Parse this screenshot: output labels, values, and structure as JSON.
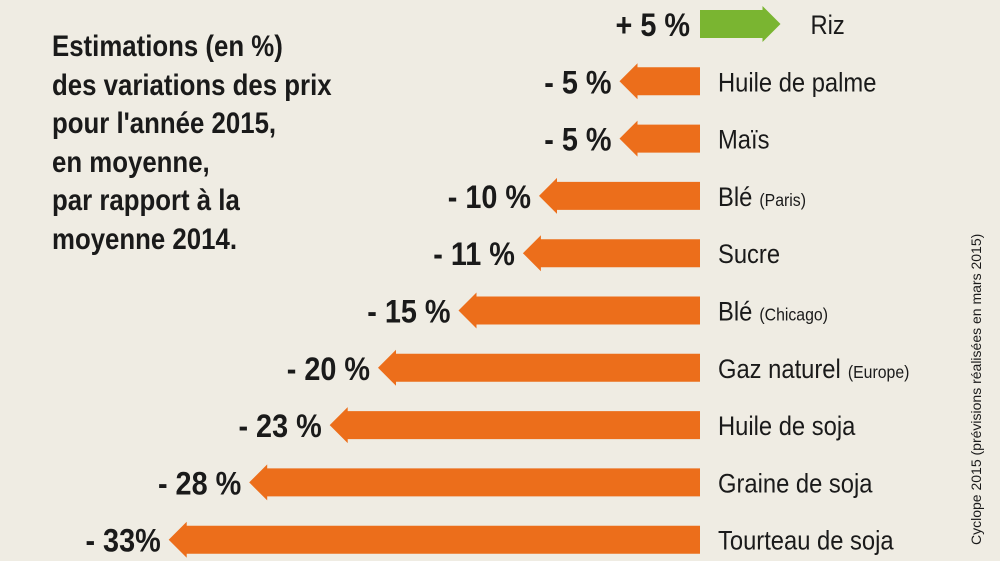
{
  "title_lines": [
    "Estimations (en %)",
    "des variations des prix",
    "pour l'année 2015,",
    "en moyenne,",
    "par rapport à la",
    "moyenne 2014."
  ],
  "source": "Cyclope 2015 (prévisions réalisées en mars 2015)",
  "colors": {
    "positive": "#7ab531",
    "negative": "#ec6e1b",
    "background": "#efece3",
    "text": "#1a1a1a"
  },
  "chart_data": {
    "type": "bar",
    "orientation": "horizontal",
    "unit": "%",
    "categories": [
      {
        "name": "Riz",
        "qualifier": ""
      },
      {
        "name": "Huile de palme",
        "qualifier": ""
      },
      {
        "name": "Maïs",
        "qualifier": ""
      },
      {
        "name": "Blé",
        "qualifier": "(Paris)"
      },
      {
        "name": "Sucre",
        "qualifier": ""
      },
      {
        "name": "Blé",
        "qualifier": "(Chicago)"
      },
      {
        "name": "Gaz naturel",
        "qualifier": "(Europe)"
      },
      {
        "name": "Huile de soja",
        "qualifier": ""
      },
      {
        "name": "Graine de soja",
        "qualifier": ""
      },
      {
        "name": "Tourteau de soja",
        "qualifier": ""
      }
    ],
    "values": [
      5,
      -5,
      -5,
      -10,
      -11,
      -15,
      -20,
      -23,
      -28,
      -33
    ],
    "value_labels": [
      "+ 5 %",
      "- 5 %",
      "- 5 %",
      "- 10 %",
      "- 11 %",
      "- 15 %",
      "- 20 %",
      "- 23 %",
      "- 28 %",
      "- 33%"
    ]
  }
}
